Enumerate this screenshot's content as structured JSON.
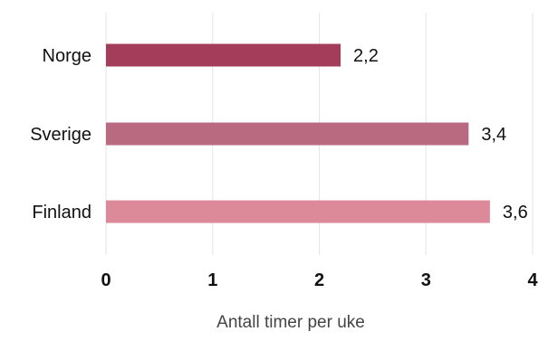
{
  "chart_data": {
    "type": "bar",
    "orientation": "horizontal",
    "categories": [
      "Norge",
      "Sverige",
      "Finland"
    ],
    "values": [
      2.2,
      3.4,
      3.6
    ],
    "value_labels": [
      "2,2",
      "3,4",
      "3,6"
    ],
    "bar_colors": [
      "#a33d5a",
      "#b96a80",
      "#dc8a99"
    ],
    "xlabel": "Antall timer per uke",
    "ylabel": "",
    "title": "",
    "xlim": [
      0,
      4
    ],
    "x_ticks": [
      0,
      1,
      2,
      3,
      4
    ],
    "x_tick_labels": [
      "0",
      "1",
      "2",
      "3",
      "4"
    ],
    "grid": "vertical",
    "legend": "none"
  },
  "colors": {
    "gridline": "#e6e6e6",
    "text": "#111111",
    "axis_title": "#444444"
  }
}
